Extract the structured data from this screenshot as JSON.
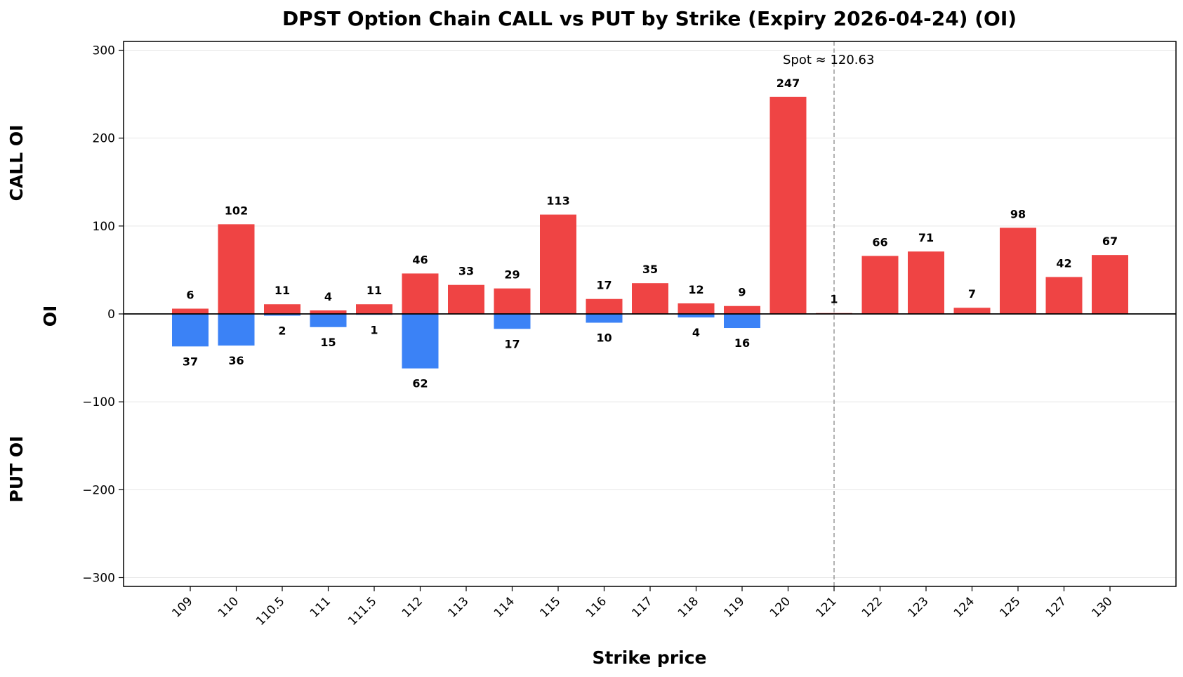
{
  "chart_data": {
    "type": "bar",
    "title": "DPST Option Chain CALL vs PUT by Strike (Expiry 2026-04-24) (OI)",
    "xlabel": "Strike price",
    "ylabel": "OI",
    "upper_label": "CALL OI",
    "lower_label": "PUT OI",
    "categories": [
      "109",
      "110",
      "110.5",
      "111",
      "111.5",
      "112",
      "113",
      "114",
      "115",
      "116",
      "117",
      "118",
      "119",
      "120",
      "121",
      "122",
      "123",
      "124",
      "125",
      "127",
      "130"
    ],
    "series": [
      {
        "name": "CALL OI",
        "color": "#ef4444",
        "values": [
          6,
          102,
          11,
          4,
          11,
          46,
          33,
          29,
          113,
          17,
          35,
          12,
          9,
          247,
          1,
          66,
          71,
          7,
          98,
          42,
          67
        ]
      },
      {
        "name": "PUT OI",
        "color": "#3b82f6",
        "values": [
          37,
          36,
          2,
          15,
          1,
          62,
          0,
          17,
          0,
          10,
          0,
          4,
          16,
          0,
          0,
          0,
          0,
          0,
          0,
          0,
          0
        ]
      }
    ],
    "yticks": [
      300,
      200,
      100,
      0,
      -100,
      -200,
      -300
    ],
    "ytick_labels": [
      "300",
      "200",
      "100",
      "0",
      "−100",
      "−200",
      "−300"
    ],
    "ylim": [
      -310,
      310
    ],
    "spot": {
      "value": 120.63,
      "label": "Spot ≈ 120.63",
      "x_category": "121"
    },
    "grid": "horizontal"
  }
}
